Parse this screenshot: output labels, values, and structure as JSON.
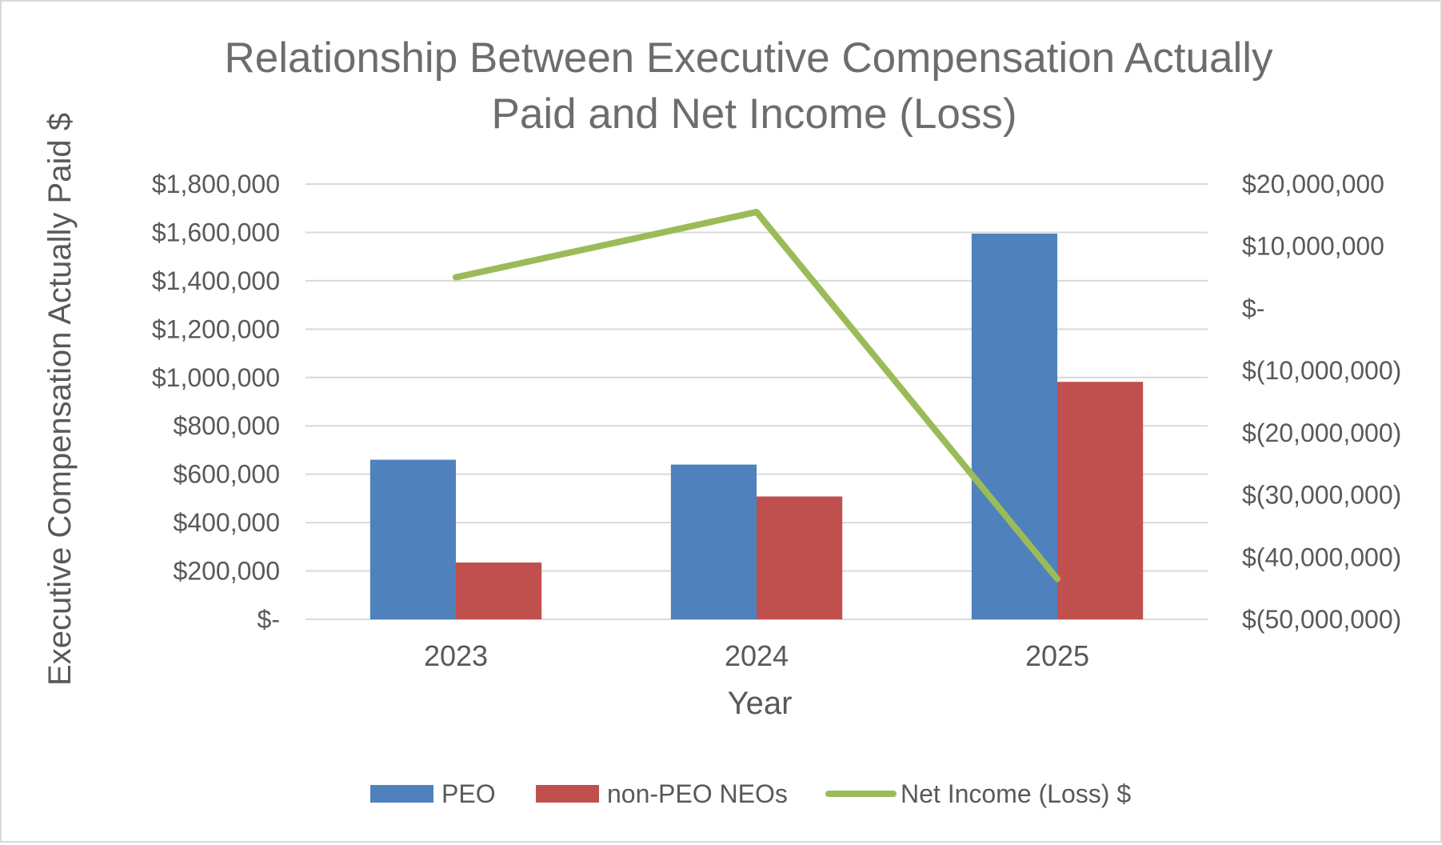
{
  "chart_data": {
    "type": "bar",
    "title_lines": [
      "Relationship Between Executive Compensation Actually",
      "Paid and Net Income (Loss)"
    ],
    "xlabel": "Year",
    "ylabel": "Executive Compensation Actually Paid $",
    "categories": [
      "2023",
      "2024",
      "2025"
    ],
    "series": [
      {
        "name": "PEO",
        "type": "bar",
        "axis": "left",
        "color": "#4f81bd",
        "values": [
          660000,
          640000,
          1595000
        ]
      },
      {
        "name": "non-PEO NEOs",
        "type": "bar",
        "axis": "left",
        "color": "#c0504d",
        "values": [
          235000,
          508000,
          982000
        ]
      },
      {
        "name": "Net Income (Loss) $",
        "type": "line",
        "axis": "right",
        "color": "#9bbb59",
        "values": [
          5000000,
          15500000,
          -43500000
        ]
      }
    ],
    "ylim": [
      0,
      1800000
    ],
    "yticks": [
      0,
      200000,
      400000,
      600000,
      800000,
      1000000,
      1200000,
      1400000,
      1600000,
      1800000
    ],
    "ytick_labels": [
      "$-",
      "$200,000",
      "$400,000",
      "$600,000",
      "$800,000",
      "$1,000,000",
      "$1,200,000",
      "$1,400,000",
      "$1,600,000",
      "$1,800,000"
    ],
    "y2lim": [
      -50000000,
      20000000
    ],
    "y2ticks": [
      20000000,
      10000000,
      0,
      -10000000,
      -20000000,
      -30000000,
      -40000000,
      -50000000
    ],
    "y2tick_labels": [
      "$20,000,000",
      "$10,000,000",
      "$-",
      "$(10,000,000)",
      "$(20,000,000)",
      "$(30,000,000)",
      "$(40,000,000)",
      "$(50,000,000)"
    ],
    "grid": true,
    "legend_position": "bottom",
    "legend_entries": [
      "PEO",
      "non-PEO NEOs",
      "Net Income (Loss) $"
    ]
  }
}
